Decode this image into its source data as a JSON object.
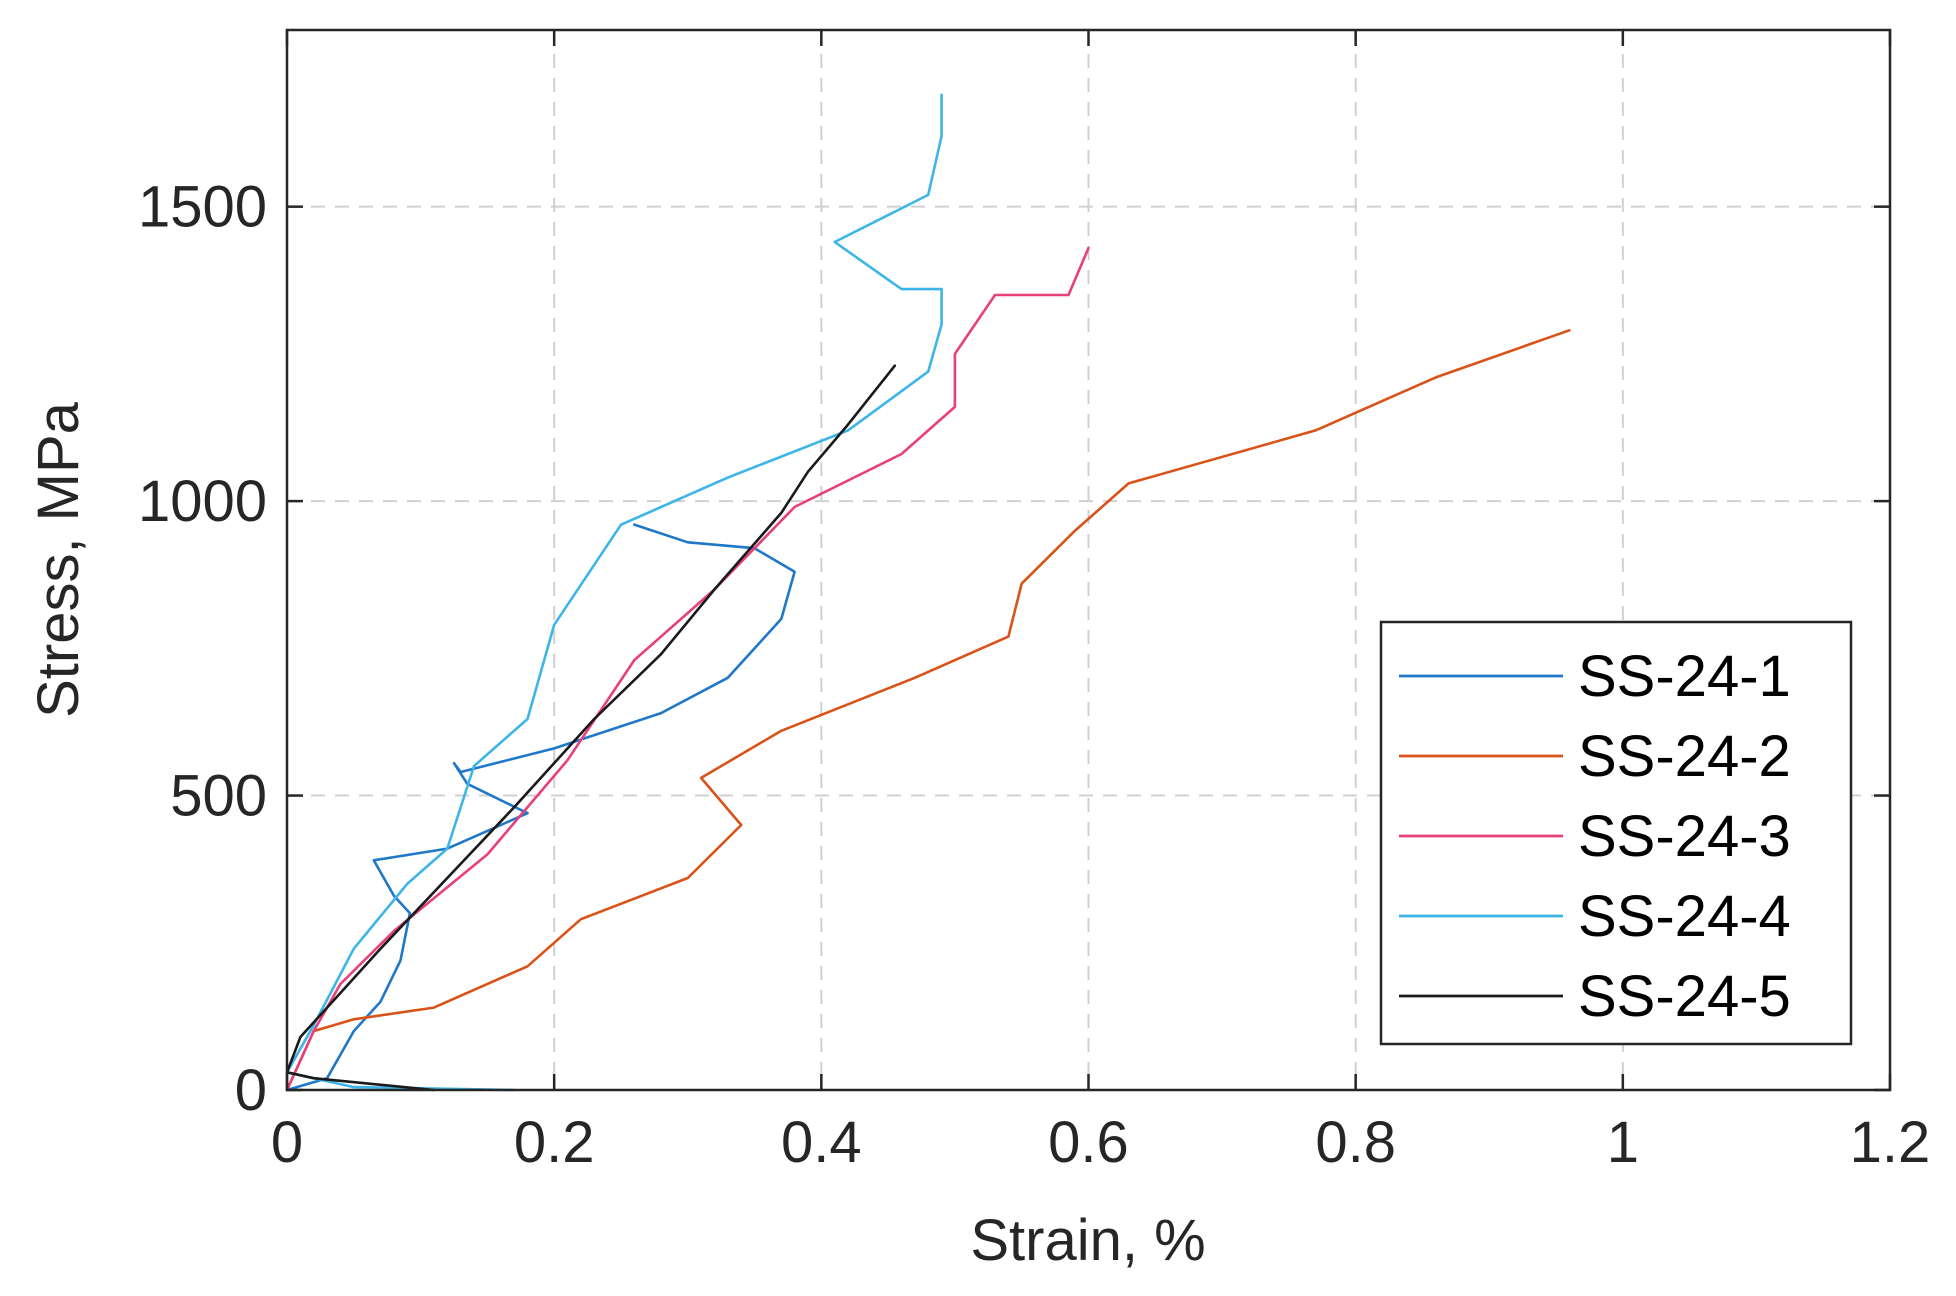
{
  "chart_data": {
    "type": "line",
    "title": "",
    "xlabel": "Strain, %",
    "ylabel": "Stress, MPa",
    "xlim": [
      0,
      1.2
    ],
    "ylim": [
      0,
      1800
    ],
    "xticks": [
      0,
      0.2,
      0.4,
      0.6,
      0.8,
      1,
      1.2
    ],
    "xtick_labels": [
      "0",
      "0.2",
      "0.4",
      "0.6",
      "0.8",
      "1",
      "1.2"
    ],
    "yticks": [
      0,
      500,
      1000,
      1500
    ],
    "ytick_labels": [
      "0",
      "500",
      "1000",
      "1500"
    ],
    "grid": true,
    "legend_position": "bottom-right",
    "series": [
      {
        "name": "SS-24-1",
        "color": "#1f78c8",
        "x": [
          0.0,
          0.03,
          0.05,
          0.07,
          0.085,
          0.092,
          0.08,
          0.065,
          0.12,
          0.15,
          0.18,
          0.135,
          0.125,
          0.13,
          0.2,
          0.28,
          0.33,
          0.37,
          0.38,
          0.35,
          0.3,
          0.26
        ],
        "y": [
          0,
          20,
          100,
          150,
          220,
          300,
          330,
          390,
          410,
          440,
          470,
          520,
          555,
          540,
          580,
          640,
          700,
          800,
          880,
          920,
          930,
          960
        ]
      },
      {
        "name": "SS-24-2",
        "color": "#d95319",
        "x": [
          0.0,
          0.02,
          0.05,
          0.11,
          0.18,
          0.22,
          0.3,
          0.34,
          0.31,
          0.37,
          0.47,
          0.54,
          0.55,
          0.59,
          0.63,
          0.77,
          0.86,
          0.96
        ],
        "y": [
          0,
          100,
          120,
          140,
          210,
          290,
          360,
          450,
          530,
          610,
          700,
          770,
          860,
          950,
          1030,
          1120,
          1210,
          1290
        ]
      },
      {
        "name": "SS-24-3",
        "color": "#e8407a",
        "x": [
          0.0,
          0.02,
          0.04,
          0.08,
          0.15,
          0.21,
          0.26,
          0.32,
          0.38,
          0.46,
          0.5,
          0.5,
          0.53,
          0.585,
          0.6
        ],
        "y": [
          0,
          100,
          180,
          270,
          400,
          560,
          730,
          850,
          990,
          1080,
          1160,
          1250,
          1350,
          1350,
          1430
        ]
      },
      {
        "name": "SS-24-4",
        "color": "#3db5e8",
        "x": [
          0.17,
          0.05,
          0.0,
          0.02,
          0.05,
          0.09,
          0.12,
          0.14,
          0.18,
          0.2,
          0.25,
          0.33,
          0.42,
          0.48,
          0.49,
          0.49,
          0.46,
          0.41,
          0.48,
          0.49,
          0.49
        ],
        "y": [
          0,
          5,
          30,
          110,
          240,
          350,
          410,
          550,
          630,
          790,
          960,
          1040,
          1120,
          1220,
          1300,
          1360,
          1360,
          1440,
          1520,
          1620,
          1690
        ]
      },
      {
        "name": "SS-24-5",
        "color": "#1a1a1a",
        "x": [
          0.11,
          0.02,
          0.0,
          0.01,
          0.03,
          0.07,
          0.12,
          0.17,
          0.23,
          0.28,
          0.32,
          0.37,
          0.39,
          0.42,
          0.455
        ],
        "y": [
          0,
          20,
          30,
          90,
          140,
          240,
          360,
          480,
          630,
          740,
          850,
          980,
          1050,
          1130,
          1230
        ]
      }
    ]
  }
}
